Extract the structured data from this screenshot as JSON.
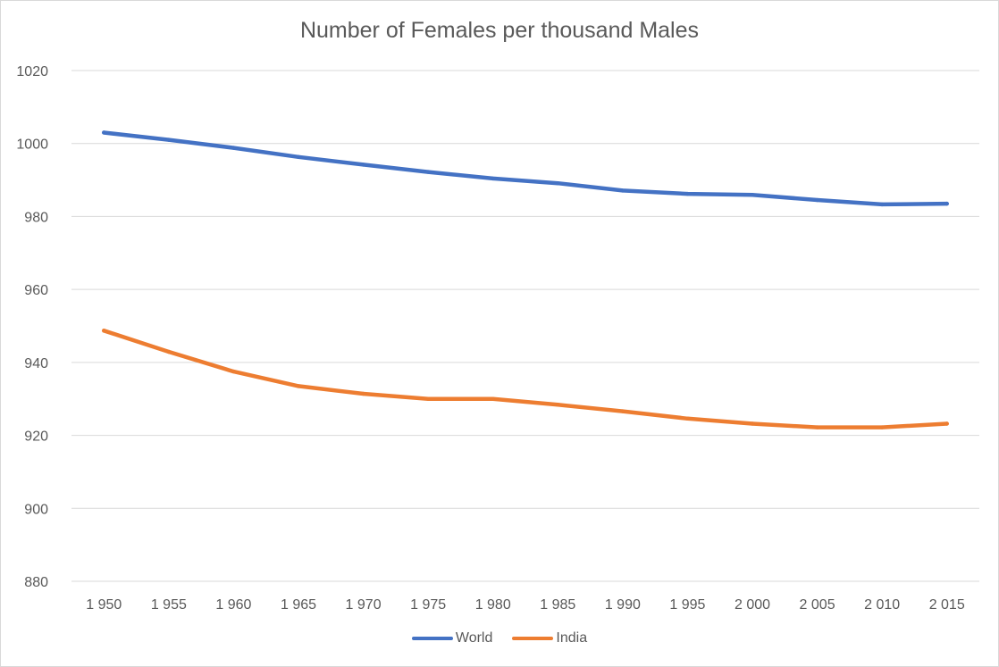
{
  "chart_data": {
    "type": "line",
    "title": "Number of Females per thousand Males",
    "xlabel": "",
    "ylabel": "",
    "categories": [
      "1 950",
      "1 955",
      "1 960",
      "1 965",
      "1 970",
      "1 975",
      "1 980",
      "1 985",
      "1 990",
      "1 995",
      "2 000",
      "2 005",
      "2 010",
      "2 015"
    ],
    "ylim": [
      880,
      1020
    ],
    "yticks": [
      880,
      900,
      920,
      940,
      960,
      980,
      1000,
      1020
    ],
    "grid": true,
    "legend_position": "bottom",
    "series": [
      {
        "name": "World",
        "color": "#4472c4",
        "values": [
          1003,
          1001,
          998.8,
          996.3,
          994.2,
          992.2,
          990.4,
          989.1,
          987.1,
          986.2,
          985.9,
          984.5,
          983.3,
          983.5
        ]
      },
      {
        "name": "India",
        "color": "#ed7d31",
        "values": [
          948.7,
          942.9,
          937.5,
          933.5,
          931.4,
          930,
          930,
          928.4,
          926.6,
          924.6,
          923.2,
          922.2,
          922.2,
          923.2
        ]
      }
    ]
  }
}
